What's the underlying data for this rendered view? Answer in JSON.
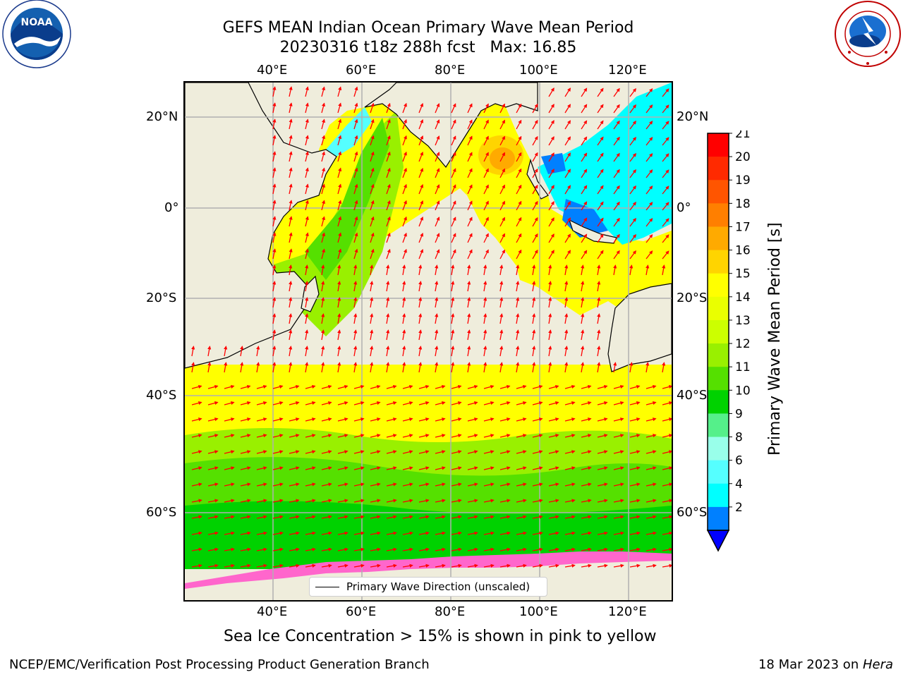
{
  "header": {
    "title_line1": "GEFS MEAN Indian Ocean Primary Wave Mean Period",
    "title_line2": "20230316 t18z 288h fcst   Max: 16.85"
  },
  "logos": {
    "noaa": {
      "icon": "noaa-logo",
      "text": "NOAA",
      "ring_text": "NATIONAL OCEANIC AND ATMOSPHERIC ADMINISTRATION",
      "dept_text": "U.S. DEPARTMENT OF COMMERCE"
    },
    "nws": {
      "icon": "nws-logo",
      "ring_text": "NATIONAL WEATHER SERVICE"
    }
  },
  "map": {
    "lon_labels": [
      "40°E",
      "60°E",
      "80°E",
      "100°E",
      "120°E"
    ],
    "lat_labels": [
      "20°N",
      "0°",
      "20°S",
      "40°S",
      "60°S"
    ],
    "land_color": "#efeddc",
    "arrow_color": "#ff0000",
    "legend_label": "Primary Wave Direction (unscaled)"
  },
  "colorbar": {
    "label": "Primary Wave Mean Period [s]",
    "ticks": [
      "21",
      "20",
      "19",
      "18",
      "17",
      "16",
      "15",
      "14",
      "13",
      "12",
      "11",
      "10",
      "9",
      "8",
      "6",
      "4",
      "2"
    ],
    "colors_top_to_bottom": [
      "#ff0000",
      "#ff2a00",
      "#ff5500",
      "#ff7f00",
      "#ffaa00",
      "#ffd400",
      "#ffff00",
      "#eaff00",
      "#ccff00",
      "#99f000",
      "#55e000",
      "#00d200",
      "#55f08a",
      "#99ffea",
      "#55ffff",
      "#00ffff",
      "#0080ff"
    ],
    "underflow_color": "#0000ff"
  },
  "caption": "Sea Ice Concentration > 15% is shown in pink to yellow",
  "footer": {
    "left": "NCEP/EMC/Verification Post Processing Product Generation Branch",
    "right_date": "18 Mar 2023 on ",
    "right_host": "Hera"
  }
}
